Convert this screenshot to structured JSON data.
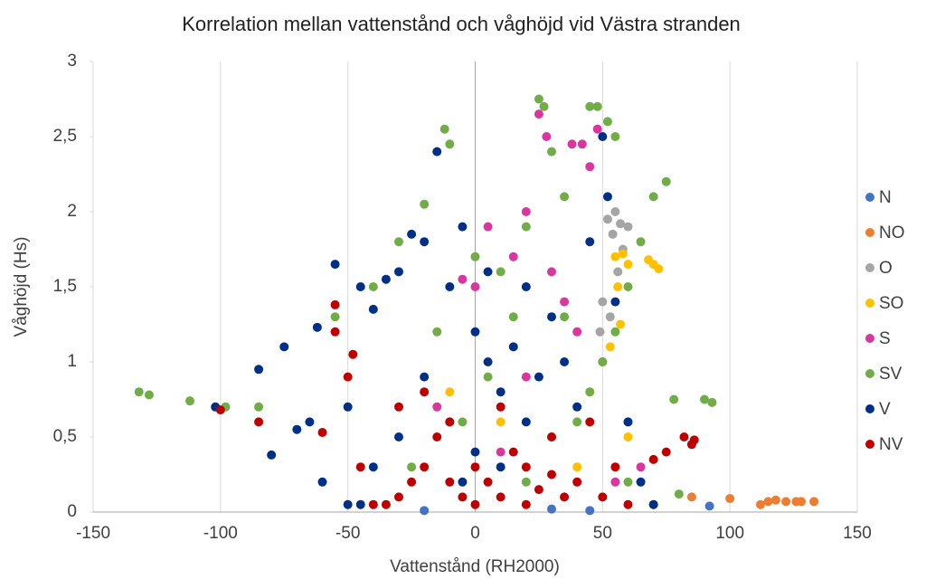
{
  "chart_data": {
    "type": "scatter",
    "title": "Korrelation mellan vattenstånd och våghöjd vid Västra stranden",
    "x_label": "Vattenstånd (RH2000)",
    "y_label": "Våghöjd (Hs)",
    "xlim": [
      -150,
      150
    ],
    "xticks": [
      -150,
      -100,
      -50,
      0,
      50,
      100,
      150
    ],
    "ylim": [
      0,
      3
    ],
    "yticks": [
      0,
      {
        "value": 0.5,
        "label": "0,5"
      },
      1,
      {
        "value": 1.5,
        "label": "1,5"
      },
      2,
      {
        "value": 2.5,
        "label": "2,5"
      },
      3
    ],
    "grid": true,
    "legend": "right",
    "series": [
      {
        "name": "N",
        "color": "#4472c4",
        "x": [
          92,
          -20,
          30,
          45
        ],
        "y": [
          0.04,
          0.01,
          0.02,
          0.01
        ]
      },
      {
        "name": "NO",
        "color": "#ed7d31",
        "x": [
          100,
          112,
          115,
          118,
          122,
          126,
          128,
          133,
          85,
          70
        ],
        "y": [
          0.09,
          0.05,
          0.07,
          0.08,
          0.07,
          0.07,
          0.07,
          0.07,
          0.1,
          0.05
        ]
      },
      {
        "name": "O",
        "color": "#a5a5a5",
        "x": [
          52,
          55,
          57,
          54,
          58,
          50,
          56,
          53,
          49,
          60
        ],
        "y": [
          1.95,
          2.0,
          1.92,
          1.85,
          1.75,
          1.4,
          1.6,
          1.3,
          1.2,
          1.9
        ]
      },
      {
        "name": "SO",
        "color": "#ffc000",
        "x": [
          55,
          58,
          60,
          70,
          72,
          68,
          56,
          57,
          53,
          45,
          60,
          40,
          -10,
          10
        ],
        "y": [
          1.7,
          1.72,
          1.65,
          1.65,
          1.62,
          1.68,
          1.5,
          1.25,
          1.1,
          0.8,
          0.5,
          0.3,
          0.8,
          0.6
        ]
      },
      {
        "name": "S",
        "color": "#d9369f",
        "x": [
          25,
          28,
          38,
          42,
          45,
          48,
          20,
          5,
          -5,
          0,
          15,
          30,
          35,
          40,
          50,
          60,
          65,
          55,
          10,
          20,
          -15
        ],
        "y": [
          2.65,
          2.5,
          2.45,
          2.45,
          2.3,
          2.55,
          2.0,
          1.9,
          1.55,
          1.5,
          1.7,
          1.6,
          1.4,
          1.2,
          1.0,
          0.6,
          0.3,
          0.2,
          0.4,
          0.9,
          0.7
        ]
      },
      {
        "name": "SV",
        "color": "#70ad47",
        "x": [
          -132,
          -128,
          -112,
          -98,
          -85,
          -55,
          -40,
          -30,
          -20,
          -10,
          -12,
          -15,
          0,
          10,
          20,
          25,
          27,
          30,
          35,
          45,
          48,
          52,
          55,
          70,
          75,
          65,
          60,
          55,
          50,
          45,
          40,
          35,
          15,
          5,
          -5,
          78,
          90,
          93,
          80,
          60,
          -25,
          30,
          20
        ],
        "y": [
          0.8,
          0.78,
          0.74,
          0.7,
          0.7,
          1.3,
          1.5,
          1.8,
          2.05,
          2.45,
          2.55,
          1.2,
          1.7,
          1.6,
          1.9,
          2.75,
          2.7,
          2.4,
          2.1,
          2.7,
          2.7,
          2.6,
          2.5,
          2.1,
          2.2,
          1.8,
          1.5,
          1.2,
          1.0,
          0.8,
          0.6,
          1.3,
          1.3,
          0.9,
          0.6,
          0.75,
          0.75,
          0.73,
          0.12,
          0.2,
          0.3,
          0.5,
          0.2
        ]
      },
      {
        "name": "V",
        "color": "#002f87",
        "x": [
          -102,
          -85,
          -80,
          -75,
          -70,
          -62,
          -60,
          -65,
          -55,
          -50,
          -45,
          -40,
          -35,
          -30,
          -25,
          -20,
          -15,
          -10,
          -5,
          0,
          5,
          10,
          15,
          20,
          25,
          30,
          35,
          40,
          45,
          50,
          52,
          55,
          60,
          65,
          -20,
          -30,
          -40,
          0,
          10,
          -10,
          20,
          -45,
          5,
          -5,
          -50,
          70
        ],
        "y": [
          0.7,
          0.95,
          0.38,
          1.1,
          0.55,
          1.23,
          0.2,
          0.6,
          1.65,
          0.7,
          1.5,
          1.35,
          1.55,
          1.6,
          1.85,
          1.8,
          2.4,
          1.5,
          1.9,
          1.2,
          1.0,
          0.8,
          1.1,
          0.6,
          0.9,
          1.3,
          1.0,
          0.7,
          1.8,
          2.5,
          2.1,
          1.4,
          0.6,
          0.2,
          0.9,
          0.5,
          0.3,
          0.4,
          0.3,
          0.6,
          1.5,
          0.05,
          1.6,
          0.2,
          0.05,
          0.05
        ]
      },
      {
        "name": "NV",
        "color": "#c00000",
        "x": [
          -100,
          -85,
          -60,
          -55,
          -55,
          -50,
          -48,
          -40,
          -35,
          -30,
          -25,
          -20,
          -15,
          -10,
          -5,
          0,
          5,
          10,
          15,
          20,
          25,
          30,
          35,
          40,
          45,
          50,
          55,
          60,
          70,
          75,
          82,
          85,
          86,
          -30,
          -20,
          -10,
          10,
          30,
          0,
          20,
          -45
        ],
        "y": [
          0.68,
          0.6,
          0.53,
          1.38,
          1.2,
          0.9,
          1.05,
          0.05,
          0.05,
          0.1,
          0.2,
          0.3,
          0.5,
          0.2,
          0.1,
          0.3,
          0.2,
          0.1,
          0.4,
          0.3,
          0.15,
          0.25,
          0.1,
          0.2,
          0.6,
          0.1,
          0.3,
          0.05,
          0.35,
          0.4,
          0.5,
          0.45,
          0.48,
          0.7,
          0.8,
          0.6,
          0.7,
          0.5,
          0.05,
          0.05,
          0.3
        ]
      }
    ]
  }
}
